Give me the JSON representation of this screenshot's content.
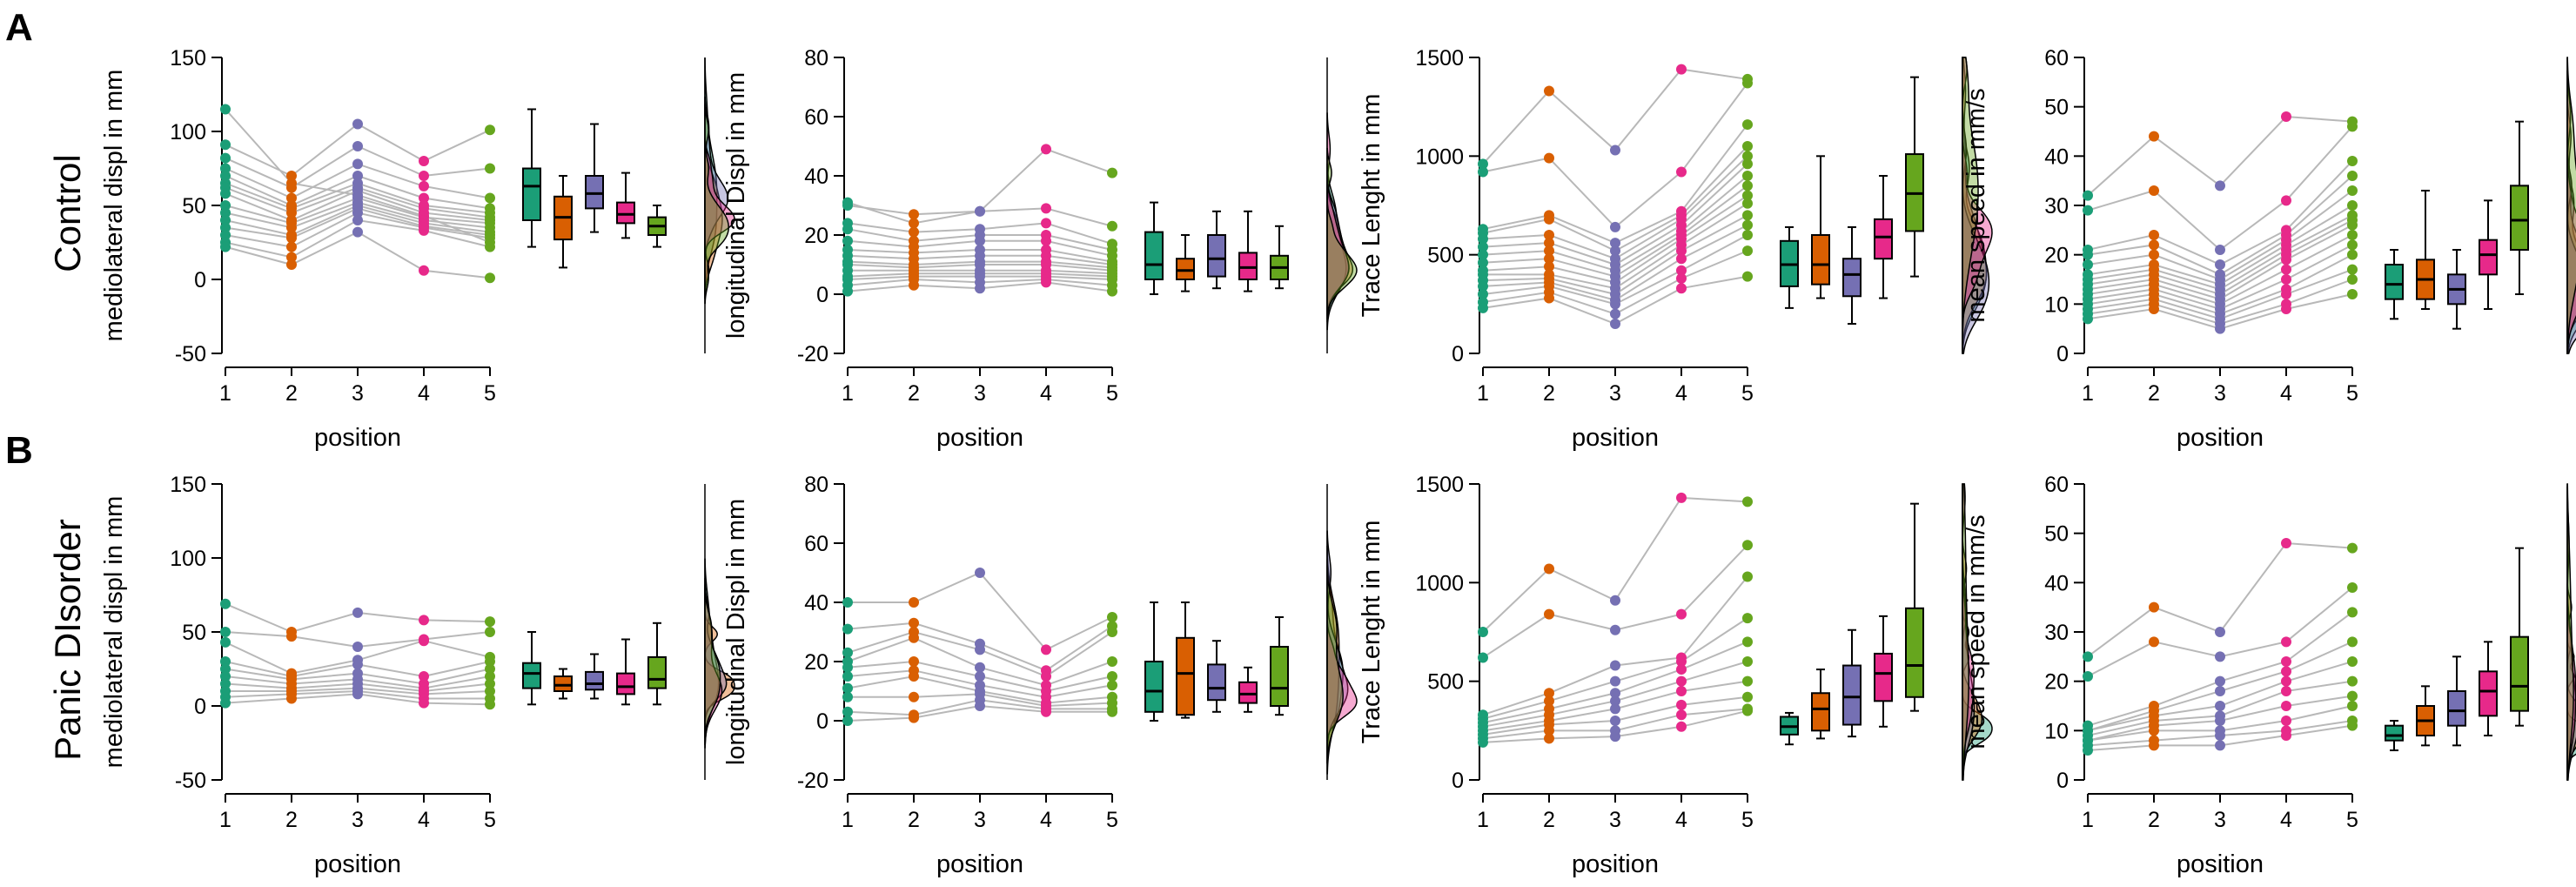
{
  "figure": {
    "colors": [
      "#1b9e77",
      "#d95f02",
      "#7570b3",
      "#e7298a",
      "#66a61e"
    ],
    "rows": [
      {
        "letter": "A",
        "group": "Control"
      },
      {
        "letter": "B",
        "group": "Panic DIsorder"
      }
    ]
  },
  "chart_data": [
    {
      "type": "scatter",
      "group": "Control",
      "xlabel": "position",
      "ylabel": "mediolateral displ in mm",
      "ylim": [
        -50,
        150
      ],
      "yticks": [
        -50,
        0,
        50,
        100,
        150
      ],
      "categories": [
        "1",
        "2",
        "3",
        "4",
        "5"
      ],
      "subjects": [
        [
          115,
          65,
          57,
          43,
          25
        ],
        [
          91,
          70,
          105,
          80,
          101
        ],
        [
          82,
          62,
          90,
          70,
          75
        ],
        [
          75,
          55,
          78,
          63,
          55
        ],
        [
          70,
          50,
          70,
          55,
          48
        ],
        [
          65,
          48,
          65,
          50,
          45
        ],
        [
          62,
          45,
          62,
          48,
          42
        ],
        [
          58,
          40,
          60,
          45,
          40
        ],
        [
          50,
          38,
          55,
          42,
          38
        ],
        [
          45,
          35,
          52,
          40,
          35
        ],
        [
          40,
          30,
          50,
          38,
          32
        ],
        [
          35,
          28,
          48,
          36,
          30
        ],
        [
          30,
          22,
          45,
          35,
          28
        ],
        [
          25,
          15,
          40,
          33,
          22
        ],
        [
          22,
          10,
          32,
          6,
          1
        ]
      ],
      "boxes": [
        {
          "q1": 40,
          "median": 63,
          "q3": 75,
          "low": 22,
          "high": 115
        },
        {
          "q1": 27,
          "median": 42,
          "q3": 56,
          "low": 8,
          "high": 70
        },
        {
          "q1": 48,
          "median": 58,
          "q3": 70,
          "low": 32,
          "high": 105
        },
        {
          "q1": 38,
          "median": 44,
          "q3": 52,
          "low": 28,
          "high": 72
        },
        {
          "q1": 30,
          "median": 36,
          "q3": 42,
          "low": 22,
          "high": 50
        }
      ]
    },
    {
      "type": "scatter",
      "group": "Control",
      "xlabel": "position",
      "ylabel": "longitudinal Displ in mm",
      "ylim": [
        -20,
        80
      ],
      "yticks": [
        -20,
        0,
        20,
        40,
        60,
        80
      ],
      "categories": [
        "1",
        "2",
        "3",
        "4",
        "5"
      ],
      "subjects": [
        [
          30,
          27,
          28,
          49,
          41
        ],
        [
          31,
          24,
          28,
          29,
          23
        ],
        [
          24,
          21,
          22,
          24,
          17
        ],
        [
          22,
          18,
          20,
          20,
          15
        ],
        [
          18,
          16,
          18,
          18,
          13
        ],
        [
          15,
          14,
          15,
          15,
          11
        ],
        [
          13,
          12,
          13,
          13,
          10
        ],
        [
          11,
          10,
          11,
          11,
          9
        ],
        [
          10,
          9,
          10,
          10,
          8
        ],
        [
          8,
          8,
          8,
          8,
          7
        ],
        [
          6,
          7,
          7,
          7,
          6
        ],
        [
          5,
          6,
          6,
          6,
          5
        ],
        [
          3,
          5,
          4,
          5,
          3
        ],
        [
          1,
          3,
          2,
          4,
          1
        ]
      ],
      "boxes": [
        {
          "q1": 5,
          "median": 10,
          "q3": 21,
          "low": 0,
          "high": 31
        },
        {
          "q1": 5,
          "median": 8,
          "q3": 12,
          "low": 1,
          "high": 20
        },
        {
          "q1": 6,
          "median": 12,
          "q3": 20,
          "low": 2,
          "high": 28
        },
        {
          "q1": 5,
          "median": 9,
          "q3": 14,
          "low": 1,
          "high": 28
        },
        {
          "q1": 5,
          "median": 9,
          "q3": 13,
          "low": 2,
          "high": 23
        }
      ]
    },
    {
      "type": "scatter",
      "group": "Control",
      "xlabel": "position",
      "ylabel": "Trace Lenght in mm",
      "ylim": [
        0,
        1500
      ],
      "yticks": [
        0,
        500,
        1000,
        1500
      ],
      "categories": [
        "1",
        "2",
        "3",
        "4",
        "5"
      ],
      "subjects": [
        [
          960,
          1330,
          1030,
          1440,
          1390
        ],
        [
          920,
          990,
          640,
          920,
          1370
        ],
        [
          630,
          700,
          560,
          720,
          1160
        ],
        [
          610,
          680,
          520,
          700,
          1050
        ],
        [
          580,
          600,
          480,
          680,
          1000
        ],
        [
          540,
          560,
          450,
          650,
          960
        ],
        [
          500,
          520,
          420,
          620,
          900
        ],
        [
          460,
          480,
          390,
          600,
          850
        ],
        [
          420,
          440,
          360,
          580,
          800
        ],
        [
          400,
          400,
          330,
          550,
          760
        ],
        [
          370,
          380,
          300,
          520,
          700
        ],
        [
          340,
          360,
          270,
          480,
          650
        ],
        [
          300,
          340,
          250,
          420,
          600
        ],
        [
          260,
          310,
          200,
          380,
          520
        ],
        [
          230,
          280,
          150,
          330,
          390
        ]
      ],
      "boxes": [
        {
          "q1": 340,
          "median": 450,
          "q3": 570,
          "low": 230,
          "high": 640
        },
        {
          "q1": 350,
          "median": 450,
          "q3": 600,
          "low": 280,
          "high": 1000
        },
        {
          "q1": 290,
          "median": 400,
          "q3": 480,
          "low": 150,
          "high": 640
        },
        {
          "q1": 480,
          "median": 590,
          "q3": 680,
          "low": 280,
          "high": 900
        },
        {
          "q1": 620,
          "median": 810,
          "q3": 1010,
          "low": 390,
          "high": 1400
        }
      ]
    },
    {
      "type": "scatter",
      "group": "Control",
      "xlabel": "position",
      "ylabel": "mean speed in mm/s",
      "ylim": [
        0,
        60
      ],
      "yticks": [
        0,
        10,
        20,
        30,
        40,
        50,
        60
      ],
      "categories": [
        "1",
        "2",
        "3",
        "4",
        "5"
      ],
      "subjects": [
        [
          32,
          44,
          34,
          48,
          47
        ],
        [
          29,
          33,
          21,
          31,
          46
        ],
        [
          21,
          24,
          18,
          25,
          39
        ],
        [
          20,
          22,
          16,
          24,
          36
        ],
        [
          18,
          20,
          15,
          23,
          33
        ],
        [
          16,
          18,
          14,
          22,
          30
        ],
        [
          15,
          17,
          13,
          21,
          28
        ],
        [
          14,
          16,
          12,
          20,
          27
        ],
        [
          13,
          15,
          11,
          19,
          26
        ],
        [
          12,
          14,
          10,
          17,
          24
        ],
        [
          11,
          13,
          9,
          15,
          22
        ],
        [
          10,
          12,
          8,
          13,
          20
        ],
        [
          9,
          11,
          7,
          12,
          17
        ],
        [
          8,
          10,
          6,
          10,
          15
        ],
        [
          7,
          9,
          5,
          9,
          12
        ]
      ],
      "boxes": [
        {
          "q1": 11,
          "median": 14,
          "q3": 18,
          "low": 7,
          "high": 21
        },
        {
          "q1": 11,
          "median": 15,
          "q3": 19,
          "low": 9,
          "high": 33
        },
        {
          "q1": 10,
          "median": 13,
          "q3": 16,
          "low": 5,
          "high": 21
        },
        {
          "q1": 16,
          "median": 20,
          "q3": 23,
          "low": 9,
          "high": 31
        },
        {
          "q1": 21,
          "median": 27,
          "q3": 34,
          "low": 12,
          "high": 47
        }
      ]
    },
    {
      "type": "scatter",
      "group": "Panic DIsorder",
      "xlabel": "position",
      "ylabel": "mediolateral displ in mm",
      "ylim": [
        -50,
        150
      ],
      "yticks": [
        -50,
        0,
        50,
        100,
        150
      ],
      "categories": [
        "1",
        "2",
        "3",
        "4",
        "5"
      ],
      "subjects": [
        [
          69,
          50,
          63,
          58,
          57
        ],
        [
          50,
          47,
          40,
          45,
          50
        ],
        [
          43,
          22,
          31,
          44,
          33
        ],
        [
          30,
          20,
          28,
          20,
          30
        ],
        [
          25,
          18,
          22,
          15,
          25
        ],
        [
          20,
          15,
          18,
          12,
          20
        ],
        [
          15,
          12,
          15,
          10,
          15
        ],
        [
          10,
          10,
          12,
          8,
          10
        ],
        [
          6,
          8,
          10,
          5,
          5
        ],
        [
          2,
          5,
          8,
          2,
          1
        ]
      ],
      "boxes": [
        {
          "q1": 12,
          "median": 22,
          "q3": 29,
          "low": 1,
          "high": 50
        },
        {
          "q1": 10,
          "median": 14,
          "q3": 20,
          "low": 5,
          "high": 25
        },
        {
          "q1": 11,
          "median": 15,
          "q3": 23,
          "low": 5,
          "high": 35
        },
        {
          "q1": 8,
          "median": 13,
          "q3": 22,
          "low": 1,
          "high": 45
        },
        {
          "q1": 12,
          "median": 18,
          "q3": 33,
          "low": 1,
          "high": 56
        }
      ]
    },
    {
      "type": "scatter",
      "group": "Panic DIsorder",
      "xlabel": "position",
      "ylabel": "longitudinal Displ in mm",
      "ylim": [
        -20,
        80
      ],
      "yticks": [
        -20,
        0,
        20,
        40,
        60,
        80
      ],
      "categories": [
        "1",
        "2",
        "3",
        "4",
        "5"
      ],
      "subjects": [
        [
          40,
          40,
          50,
          24,
          35
        ],
        [
          31,
          33,
          26,
          17,
          32
        ],
        [
          23,
          30,
          24,
          15,
          30
        ],
        [
          20,
          28,
          18,
          12,
          20
        ],
        [
          18,
          20,
          15,
          10,
          15
        ],
        [
          15,
          17,
          12,
          8,
          12
        ],
        [
          11,
          15,
          10,
          6,
          8
        ],
        [
          8,
          8,
          9,
          5,
          6
        ],
        [
          3,
          2,
          7,
          4,
          4
        ],
        [
          0,
          1,
          5,
          3,
          3
        ]
      ],
      "boxes": [
        {
          "q1": 3,
          "median": 10,
          "q3": 20,
          "low": 0,
          "high": 40
        },
        {
          "q1": 2,
          "median": 16,
          "q3": 28,
          "low": 1,
          "high": 40
        },
        {
          "q1": 7,
          "median": 11,
          "q3": 19,
          "low": 3,
          "high": 27
        },
        {
          "q1": 6,
          "median": 9,
          "q3": 13,
          "low": 3,
          "high": 18
        },
        {
          "q1": 5,
          "median": 11,
          "q3": 25,
          "low": 2,
          "high": 35
        }
      ]
    },
    {
      "type": "scatter",
      "group": "Panic DIsorder",
      "xlabel": "position",
      "ylabel": "Trace Lenght in mm",
      "ylim": [
        0,
        1500
      ],
      "yticks": [
        0,
        500,
        1000,
        1500
      ],
      "categories": [
        "1",
        "2",
        "3",
        "4",
        "5"
      ],
      "subjects": [
        [
          750,
          1070,
          910,
          1430,
          1410
        ],
        [
          620,
          840,
          760,
          840,
          1190
        ],
        [
          330,
          440,
          580,
          620,
          1030
        ],
        [
          310,
          400,
          500,
          600,
          820
        ],
        [
          290,
          360,
          440,
          560,
          700
        ],
        [
          270,
          330,
          400,
          500,
          600
        ],
        [
          250,
          300,
          360,
          450,
          500
        ],
        [
          230,
          280,
          300,
          380,
          420
        ],
        [
          210,
          250,
          250,
          330,
          360
        ],
        [
          190,
          210,
          220,
          270,
          350
        ]
      ],
      "boxes": [
        {
          "q1": 230,
          "median": 270,
          "q3": 320,
          "low": 180,
          "high": 340
        },
        {
          "q1": 250,
          "median": 360,
          "q3": 440,
          "low": 210,
          "high": 560
        },
        {
          "q1": 280,
          "median": 420,
          "q3": 580,
          "low": 220,
          "high": 760
        },
        {
          "q1": 400,
          "median": 540,
          "q3": 640,
          "low": 270,
          "high": 830
        },
        {
          "q1": 420,
          "median": 580,
          "q3": 870,
          "low": 350,
          "high": 1400
        }
      ]
    },
    {
      "type": "scatter",
      "group": "Panic DIsorder",
      "xlabel": "position",
      "ylabel": "mean speed in mm/s",
      "ylim": [
        0,
        60
      ],
      "yticks": [
        0,
        10,
        20,
        30,
        40,
        50,
        60
      ],
      "categories": [
        "1",
        "2",
        "3",
        "4",
        "5"
      ],
      "subjects": [
        [
          25,
          35,
          30,
          48,
          47
        ],
        [
          21,
          28,
          25,
          28,
          39
        ],
        [
          11,
          15,
          20,
          24,
          34
        ],
        [
          10,
          14,
          18,
          22,
          28
        ],
        [
          10,
          13,
          15,
          20,
          24
        ],
        [
          9,
          12,
          13,
          18,
          20
        ],
        [
          8,
          11,
          12,
          15,
          17
        ],
        [
          8,
          10,
          10,
          12,
          15
        ],
        [
          7,
          8,
          9,
          10,
          12
        ],
        [
          6,
          7,
          7,
          9,
          11
        ]
      ],
      "boxes": [
        {
          "q1": 8,
          "median": 9,
          "q3": 11,
          "low": 6,
          "high": 12
        },
        {
          "q1": 9,
          "median": 12,
          "q3": 15,
          "low": 7,
          "high": 19
        },
        {
          "q1": 11,
          "median": 14,
          "q3": 18,
          "low": 7,
          "high": 25
        },
        {
          "q1": 13,
          "median": 18,
          "q3": 22,
          "low": 9,
          "high": 28
        },
        {
          "q1": 14,
          "median": 19,
          "q3": 29,
          "low": 11,
          "high": 47
        }
      ]
    }
  ]
}
